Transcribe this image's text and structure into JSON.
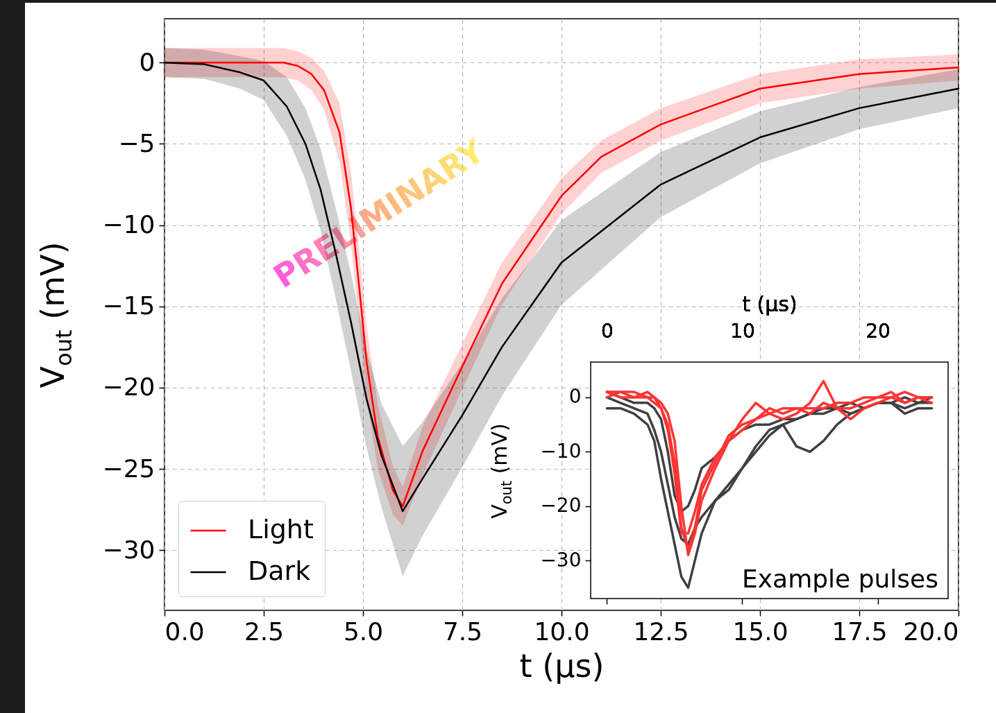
{
  "chart_data": [
    {
      "type": "line",
      "xlabel": "t (μs)",
      "ylabel": "V$_{out}$ (mV)",
      "xlim": [
        0,
        20
      ],
      "ylim": [
        -33.7,
        2.7
      ],
      "xticks": [
        {
          "value": 0,
          "label": "0.0"
        },
        {
          "value": 2.5,
          "label": "2.5"
        },
        {
          "value": 5,
          "label": "5.0"
        },
        {
          "value": 7.5,
          "label": "7.5"
        },
        {
          "value": 10,
          "label": "10.0"
        },
        {
          "value": 12.5,
          "label": "12.5"
        },
        {
          "value": 15,
          "label": "15.0"
        },
        {
          "value": 17.5,
          "label": "17.5"
        },
        {
          "value": 20,
          "label": "20.0"
        }
      ],
      "yticks": [
        0,
        -5,
        -10,
        -15,
        -20,
        -25,
        -30
      ],
      "grid": true,
      "legend": "bottom left",
      "annotations": [
        "PRELIMINARY"
      ],
      "series": [
        {
          "name": "Light",
          "color": "#ff0000",
          "x": [
            0,
            1,
            2,
            3,
            3.36,
            3.7,
            4.02,
            4.41,
            4.7,
            4.9,
            5.09,
            5.37,
            5.75,
            6,
            6.5,
            7.5,
            8.5,
            10,
            11,
            12.5,
            15,
            17.5,
            20
          ],
          "values": [
            0,
            0,
            0,
            0,
            -0.2,
            -0.7,
            -1.7,
            -4.3,
            -9.0,
            -13.7,
            -18.4,
            -23.0,
            -26.3,
            -27.3,
            -23.9,
            -18.7,
            -13.6,
            -8.2,
            -5.8,
            -3.8,
            -1.6,
            -0.7,
            -0.3
          ],
          "lower": [
            -0.9,
            -0.9,
            -0.9,
            -0.9,
            -1.1,
            -1.7,
            -2.9,
            -6.1,
            -11.2,
            -15.9,
            -20.6,
            -25.0,
            -27.8,
            -28.5,
            -25.4,
            -20.1,
            -14.9,
            -9.3,
            -6.8,
            -4.8,
            -2.5,
            -1.6,
            -1.1
          ],
          "upper": [
            0.9,
            0.9,
            0.9,
            0.9,
            0.7,
            0.3,
            -0.5,
            -2.5,
            -6.8,
            -11.5,
            -16.2,
            -21.0,
            -24.8,
            -26.1,
            -22.4,
            -17.3,
            -12.3,
            -7.1,
            -4.8,
            -2.8,
            -0.7,
            0.2,
            0.5
          ]
        },
        {
          "name": "Dark",
          "color": "#000000",
          "x": [
            0,
            1,
            1.9,
            2.5,
            3.08,
            3.55,
            3.93,
            4.32,
            4.7,
            5.09,
            5.47,
            6,
            6.5,
            7.5,
            8.5,
            10,
            12.5,
            15,
            17.5,
            20
          ],
          "values": [
            0,
            -0.1,
            -0.6,
            -1.1,
            -2.7,
            -5.0,
            -7.8,
            -11.8,
            -16.0,
            -20.7,
            -24.2,
            -27.6,
            -25.6,
            -21.7,
            -17.5,
            -12.3,
            -7.5,
            -4.6,
            -2.8,
            -1.6
          ],
          "lower": [
            -0.9,
            -1.0,
            -1.6,
            -2.3,
            -4.5,
            -7.2,
            -10.3,
            -14.6,
            -19.0,
            -23.7,
            -27.4,
            -31.6,
            -29.1,
            -24.9,
            -20.5,
            -14.9,
            -9.5,
            -6.2,
            -4.1,
            -2.8
          ],
          "upper": [
            0.9,
            0.8,
            0.4,
            0.1,
            -0.9,
            -2.8,
            -5.3,
            -9.0,
            -13.0,
            -17.7,
            -21.0,
            -23.6,
            -22.1,
            -18.5,
            -14.5,
            -9.7,
            -5.5,
            -3.0,
            -1.5,
            -0.4
          ]
        }
      ]
    },
    {
      "type": "line",
      "ylabel": "V$_{out}$ (mV)",
      "xlabel": "t (μs)",
      "xlim": [
        -1.2,
        25.2
      ],
      "ylim": [
        -37,
        6.5
      ],
      "xticks": [
        0,
        10,
        20
      ],
      "yticks": [
        0,
        -10,
        -20,
        -30
      ],
      "annotations": [
        "Example pulses"
      ],
      "x": [
        0,
        1,
        2,
        3,
        3.5,
        4,
        4.5,
        5,
        5.5,
        6,
        6.5,
        7,
        8,
        9,
        10,
        11,
        12,
        13,
        14,
        15,
        16,
        17,
        18,
        19,
        20,
        21,
        22,
        23,
        24
      ],
      "series": [
        {
          "color": "#404040",
          "values": [
            -2,
            -2,
            -3,
            -5,
            -8,
            -15,
            -21,
            -27,
            -33,
            -35,
            -30,
            -25,
            -19,
            -16,
            -13,
            -10,
            -7,
            -5,
            -9,
            -10,
            -8,
            -5,
            -3,
            -2,
            -1,
            -1,
            -3,
            -2,
            -2
          ]
        },
        {
          "color": "#404040",
          "values": [
            0,
            -1,
            -2,
            -3,
            -6,
            -10,
            -16,
            -22,
            -26,
            -27,
            -24,
            -22,
            -19,
            -17,
            -13,
            -9,
            -6,
            -5,
            -4,
            -3,
            -2,
            -2,
            -1,
            -2,
            -1,
            -1,
            0,
            -1,
            0
          ]
        },
        {
          "color": "#404040",
          "values": [
            1,
            0,
            -1,
            -1,
            -2,
            -4,
            -10,
            -18,
            -21,
            -20,
            -17,
            -13,
            -11,
            -8,
            -6,
            -5,
            -5,
            -4,
            -4,
            -3,
            -3,
            -2,
            -3,
            -2,
            -1,
            -1,
            -2,
            -1,
            -1
          ]
        },
        {
          "color": "#ff3333",
          "values": [
            1,
            1,
            0,
            1,
            0,
            -1,
            -3,
            -8,
            -20,
            -29,
            -25,
            -19,
            -13,
            -8,
            -4,
            -1,
            -3,
            -4,
            -3,
            -1,
            3,
            -2,
            -4,
            -2,
            -1,
            0,
            -1,
            0,
            0
          ]
        },
        {
          "color": "#ff3333",
          "values": [
            0,
            1,
            1,
            0,
            0,
            -2,
            -5,
            -12,
            -24,
            -28,
            -24,
            -17,
            -12,
            -7,
            -5,
            -4,
            -3,
            -2,
            -2,
            -3,
            -1,
            -2,
            -2,
            -1,
            0,
            1,
            -1,
            0,
            -1
          ]
        },
        {
          "color": "#ff3333",
          "values": [
            1,
            0,
            0,
            0,
            -1,
            -2,
            -6,
            -14,
            -25,
            -25,
            -21,
            -16,
            -11,
            -8,
            -6,
            -4,
            -2,
            -3,
            -2,
            -2,
            -2,
            -1,
            -1,
            0,
            0,
            0,
            1,
            0,
            0
          ]
        }
      ]
    }
  ]
}
